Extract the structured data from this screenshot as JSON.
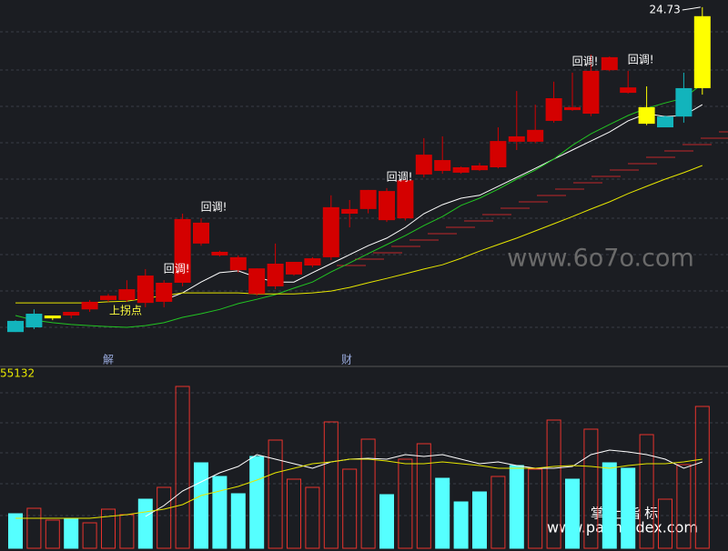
{
  "chart_data": {
    "type": "candlestick",
    "open": [
      16.01,
      16.21,
      16.08,
      16.16,
      16.33,
      16.59,
      16.59,
      16.51,
      16.54,
      17.07,
      18.74,
      17.93,
      17.78,
      16.76,
      16.97,
      17.3,
      17.55,
      17.78,
      18.99,
      19.12,
      19.62,
      18.86,
      20.08,
      20.48,
      20.13,
      20.2,
      20.28,
      20.99,
      20.99,
      21.57,
      21.95,
      21.77,
      22.98,
      22.5,
      21.49,
      21.69,
      22.48,
      22.48
    ],
    "high": [
      16.03,
      16.33,
      16.16,
      16.26,
      16.59,
      16.76,
      17.14,
      17.45,
      17.14,
      18.99,
      18.86,
      17.96,
      17.83,
      17.47,
      18.16,
      17.65,
      17.78,
      19.5,
      19.37,
      19.65,
      19.7,
      19.95,
      21.09,
      21.14,
      20.3,
      20.4,
      21.39,
      22.4,
      22.02,
      22.66,
      22.91,
      23.41,
      23.36,
      22.96,
      22.53,
      21.72,
      22.91,
      24.73
    ],
    "low": [
      15.7,
      15.78,
      16.03,
      16.08,
      16.26,
      16.54,
      16.54,
      16.39,
      16.39,
      16.97,
      18.1,
      17.8,
      17.35,
      16.71,
      16.89,
      17.27,
      17.5,
      17.7,
      18.61,
      19.0,
      18.76,
      18.8,
      20.0,
      20.1,
      20.1,
      20.18,
      20.25,
      20.76,
      20.95,
      21.52,
      21.85,
      21.7,
      22.95,
      22.33,
      21.45,
      21.39,
      21.52,
      22.3
    ],
    "close": [
      15.7,
      15.83,
      16.16,
      16.26,
      16.54,
      16.71,
      16.89,
      17.27,
      17.07,
      18.84,
      18.16,
      17.83,
      17.42,
      17.47,
      17.6,
      17.65,
      17.75,
      19.17,
      19.12,
      19.65,
      18.81,
      19.92,
      20.63,
      20.18,
      20.28,
      20.33,
      21.01,
      21.14,
      21.32,
      22.2,
      21.87,
      22.96,
      23.34,
      22.35,
      21.95,
      21.39,
      21.69,
      24.48
    ],
    "colors": [
      "#12b4bc",
      "#12b4bc",
      "#ffff00",
      "#d40000",
      "#d40000",
      "#d40000",
      "#d40000",
      "#d40000",
      "#d40000",
      "#d40000",
      "#d40000",
      "#d40000",
      "#d40000",
      "#d40000",
      "#d40000",
      "#d40000",
      "#d40000",
      "#d40000",
      "#d40000",
      "#d40000",
      "#d40000",
      "#d40000",
      "#d40000",
      "#d40000",
      "#d40000",
      "#d40000",
      "#d40000",
      "#d40000",
      "#d40000",
      "#d40000",
      "#d40000",
      "#d40000",
      "#d40000",
      "#d40000",
      "#ffff00",
      "#12b4bc",
      "#12b4bc",
      "#ffff00"
    ],
    "ylim": [
      14.82,
      24.93
    ],
    "series": [
      {
        "color": "#ffffff",
        "values": [
          null,
          null,
          null,
          null,
          null,
          null,
          null,
          null,
          16.59,
          16.79,
          17.09,
          17.35,
          17.4,
          17.22,
          17.09,
          17.09,
          17.35,
          17.6,
          17.85,
          18.1,
          18.31,
          18.61,
          18.99,
          19.24,
          19.42,
          19.5,
          19.75,
          20.0,
          20.25,
          20.51,
          20.76,
          21.01,
          21.26,
          21.57,
          21.77,
          21.69,
          21.72,
          22.02
        ]
      },
      {
        "color": "#22c522",
        "values": [
          16.16,
          16.03,
          15.96,
          15.91,
          15.88,
          15.85,
          15.83,
          15.88,
          15.96,
          16.11,
          16.21,
          16.33,
          16.49,
          16.61,
          16.74,
          16.92,
          17.09,
          17.37,
          17.62,
          17.88,
          18.13,
          18.38,
          18.66,
          18.91,
          19.22,
          19.42,
          19.67,
          19.95,
          20.2,
          20.51,
          20.89,
          21.21,
          21.47,
          21.72,
          21.92,
          22.07,
          22.2,
          22.6
        ]
      },
      {
        "color": "#e6e600",
        "values": [
          16.51,
          16.51,
          16.51,
          16.51,
          16.51,
          16.54,
          16.56,
          16.64,
          16.71,
          16.79,
          16.79,
          16.79,
          16.79,
          16.76,
          16.76,
          16.76,
          16.79,
          16.84,
          16.94,
          17.07,
          17.19,
          17.32,
          17.45,
          17.57,
          17.75,
          17.95,
          18.13,
          18.31,
          18.51,
          18.71,
          18.91,
          19.12,
          19.32,
          19.55,
          19.75,
          19.95,
          20.13,
          20.33
        ]
      }
    ],
    "annotations": [
      {
        "text": "回调!",
        "candle": 8
      },
      {
        "text": "回调!",
        "candle": 10
      },
      {
        "text": "回调!",
        "candle": 20
      },
      {
        "text": "回调!",
        "candle": 30
      },
      {
        "text": "回调!",
        "candle": 33
      }
    ],
    "turn_label": "上拐点",
    "markers": [
      "解",
      "财"
    ],
    "volume": {
      "label": "55132",
      "ylim": [
        0,
        114840
      ],
      "values": [
        22040,
        25520,
        17980,
        19140,
        16240,
        24940,
        21460,
        31320,
        38860,
        103240,
        54520,
        45820,
        34800,
        58580,
        69020,
        44080,
        38860,
        80620,
        50460,
        69600,
        34220,
        56840,
        66700,
        44660,
        29580,
        35960,
        45820,
        52780,
        50460,
        81780,
        44080,
        75980,
        54520,
        51040,
        72500,
        31320,
        53360,
        90480
      ],
      "colors": [
        "#55ffff",
        "#e8322c",
        "#e8322c",
        "#55ffff",
        "#e8322c",
        "#e8322c",
        "#e8322c",
        "#55ffff",
        "#e8322c",
        "#e8322c",
        "#55ffff",
        "#55ffff",
        "#55ffff",
        "#55ffff",
        "#e8322c",
        "#e8322c",
        "#e8322c",
        "#e8322c",
        "#e8322c",
        "#e8322c",
        "#55ffff",
        "#e8322c",
        "#e8322c",
        "#55ffff",
        "#55ffff",
        "#55ffff",
        "#e8322c",
        "#55ffff",
        "#e8322c",
        "#e8322c",
        "#55ffff",
        "#e8322c",
        "#55ffff",
        "#55ffff",
        "#e8322c",
        "#e8322c",
        "#e8322c",
        "#e8322c"
      ],
      "hollow_color": "#e8322c",
      "series": [
        {
          "color": "#ffffff",
          "values": [
            null,
            null,
            null,
            null,
            null,
            null,
            null,
            20300,
            27260,
            36540,
            42340,
            48140,
            52200,
            59740,
            56840,
            53940,
            51040,
            55100,
            56840,
            57420,
            56840,
            59740,
            58580,
            59740,
            56840,
            53940,
            55100,
            52780,
            51040,
            51040,
            52200,
            59740,
            62640,
            61480,
            59740,
            56840,
            51040,
            55100
          ]
        },
        {
          "color": "#e6e600",
          "values": [
            19140,
            19140,
            19140,
            19140,
            19140,
            20300,
            21460,
            23200,
            24940,
            27840,
            33640,
            36540,
            39440,
            43500,
            48140,
            51040,
            53940,
            55100,
            56840,
            56840,
            55680,
            53940,
            53940,
            55100,
            53940,
            52780,
            51040,
            51040,
            51040,
            52200,
            52780,
            52200,
            51040,
            52780,
            53940,
            53940,
            55100,
            56840
          ]
        }
      ]
    },
    "watermarks": [
      "www.6o7o.com",
      "掌 上 指 标",
      "www.palmindex.com"
    ]
  }
}
